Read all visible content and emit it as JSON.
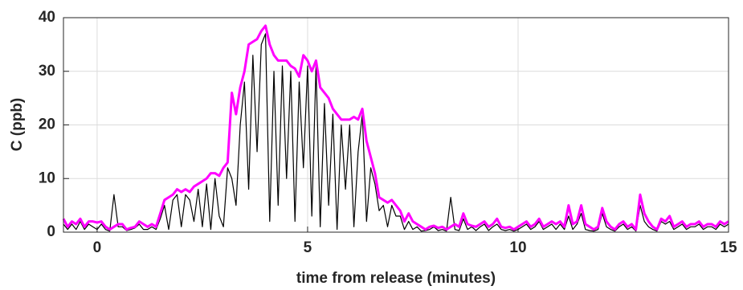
{
  "chart_data": {
    "type": "line",
    "xlabel": "time from release (minutes)",
    "ylabel": "C (ppb)",
    "x": [
      -0.8,
      -0.7,
      -0.6,
      -0.5,
      -0.4,
      -0.3,
      -0.2,
      -0.1,
      0,
      0.1,
      0.2,
      0.3,
      0.4,
      0.5,
      0.6,
      0.7,
      0.8,
      0.9,
      1,
      1.1,
      1.2,
      1.3,
      1.4,
      1.5,
      1.6,
      1.7,
      1.8,
      1.9,
      2,
      2.1,
      2.2,
      2.3,
      2.4,
      2.5,
      2.6,
      2.7,
      2.8,
      2.9,
      3,
      3.1,
      3.2,
      3.3,
      3.4,
      3.5,
      3.6,
      3.7,
      3.8,
      3.9,
      4,
      4.1,
      4.2,
      4.3,
      4.4,
      4.5,
      4.6,
      4.7,
      4.8,
      4.9,
      5,
      5.1,
      5.2,
      5.3,
      5.4,
      5.5,
      5.6,
      5.7,
      5.8,
      5.9,
      6,
      6.1,
      6.2,
      6.3,
      6.4,
      6.5,
      6.6,
      6.7,
      6.8,
      6.9,
      7,
      7.1,
      7.2,
      7.3,
      7.4,
      7.5,
      7.6,
      7.7,
      7.8,
      7.9,
      8,
      8.1,
      8.2,
      8.3,
      8.4,
      8.5,
      8.6,
      8.7,
      8.8,
      8.9,
      9,
      9.1,
      9.2,
      9.3,
      9.4,
      9.5,
      9.6,
      9.7,
      9.8,
      9.9,
      10,
      10.1,
      10.2,
      10.3,
      10.4,
      10.5,
      10.6,
      10.7,
      10.8,
      10.9,
      11,
      11.1,
      11.2,
      11.3,
      11.4,
      11.5,
      11.6,
      11.7,
      11.8,
      11.9,
      12,
      12.1,
      12.2,
      12.3,
      12.4,
      12.5,
      12.6,
      12.7,
      12.8,
      12.9,
      13,
      13.1,
      13.2,
      13.3,
      13.4,
      13.5,
      13.6,
      13.7,
      13.8,
      13.9,
      14,
      14.1,
      14.2,
      14.3,
      14.4,
      14.5,
      14.6,
      14.7,
      14.8,
      14.9,
      15
    ],
    "series": [
      {
        "color": "#000000",
        "values": [
          1.5,
          0.5,
          1.5,
          0.5,
          2,
          0.5,
          1.5,
          1,
          0.5,
          1.5,
          0.5,
          0.2,
          7,
          1,
          1,
          0.3,
          0.5,
          0.8,
          1.5,
          0.5,
          0.5,
          1,
          0.5,
          2.5,
          5,
          0.5,
          6,
          7,
          1,
          7,
          6,
          2,
          8,
          1,
          9,
          0.5,
          10,
          3,
          1,
          12,
          10,
          5,
          20,
          28,
          8,
          33,
          15,
          35,
          37,
          2,
          30,
          5,
          31,
          10,
          30,
          2,
          28,
          12,
          31,
          3,
          31,
          1,
          24,
          5,
          22,
          0.5,
          20,
          8,
          20,
          1,
          15,
          22,
          2,
          12,
          9,
          4,
          5,
          1,
          5,
          3,
          3,
          0.5,
          2,
          0.5,
          1,
          0.2,
          0.3,
          0.5,
          1,
          0.3,
          0.5,
          0.2,
          6.5,
          0.5,
          0.3,
          2.5,
          0.5,
          1,
          0.3,
          1,
          1.5,
          0.3,
          1,
          1.5,
          0.5,
          0.3,
          0.5,
          0.2,
          0.5,
          1,
          1.5,
          0.5,
          1,
          2,
          0.5,
          1,
          1.5,
          0.5,
          1.5,
          0.5,
          3,
          0.5,
          1.5,
          3.5,
          0.5,
          0.3,
          0.2,
          0.5,
          3.5,
          1,
          0.5,
          0.2,
          1,
          1.5,
          0.5,
          1,
          0.2,
          5,
          2,
          1,
          0.5,
          0.2,
          2,
          1.5,
          2,
          0.5,
          1,
          1.5,
          0.5,
          1,
          1,
          1.5,
          0.5,
          1,
          1,
          0.5,
          1.5,
          1,
          1.5
        ]
      },
      {
        "color": "#ff00ff",
        "values": [
          2.5,
          1,
          2,
          1.5,
          2.5,
          1,
          2,
          2,
          1.8,
          2,
          1,
          0.5,
          1,
          1.5,
          1.5,
          0.5,
          0.8,
          1,
          2,
          1.5,
          1,
          1.5,
          1,
          3.5,
          6,
          6.5,
          7,
          8,
          7.5,
          8,
          7.5,
          8.5,
          9,
          9.5,
          10,
          11,
          11,
          10.5,
          12,
          13,
          26,
          22,
          27,
          30,
          35,
          35.5,
          36,
          37.5,
          38.5,
          35,
          33,
          32,
          32,
          32,
          31,
          30.5,
          29,
          33,
          32,
          30,
          32,
          27,
          26,
          25,
          23,
          22,
          21,
          21,
          21,
          21.5,
          21,
          23,
          17,
          14,
          11,
          6.5,
          6,
          5.5,
          6,
          5,
          4,
          2,
          3.5,
          2,
          1.5,
          1,
          0.5,
          1,
          1.2,
          0.8,
          1,
          0.5,
          1,
          1.5,
          1,
          3.5,
          1.5,
          1.2,
          1,
          1.5,
          2,
          1,
          1.5,
          2.5,
          1,
          0.8,
          1,
          0.5,
          1,
          1.5,
          2,
          1,
          1.5,
          2.5,
          1,
          1.5,
          2,
          1.5,
          2,
          1,
          5,
          1.5,
          2,
          5,
          1.5,
          1,
          0.5,
          1,
          4.5,
          2,
          1,
          0.5,
          1.5,
          2,
          1,
          1.5,
          0.5,
          7,
          3.5,
          2,
          1,
          0.5,
          2.5,
          2,
          3,
          1,
          1.5,
          2,
          1,
          1.5,
          1.5,
          2,
          1,
          1.5,
          1.5,
          1,
          2,
          1.5,
          2
        ]
      }
    ],
    "xlim": [
      -0.8,
      15
    ],
    "ylim": [
      0,
      40
    ],
    "xticks": [
      0,
      5,
      10,
      15
    ],
    "yticks": [
      0,
      10,
      20,
      30,
      40
    ],
    "grid": true
  }
}
